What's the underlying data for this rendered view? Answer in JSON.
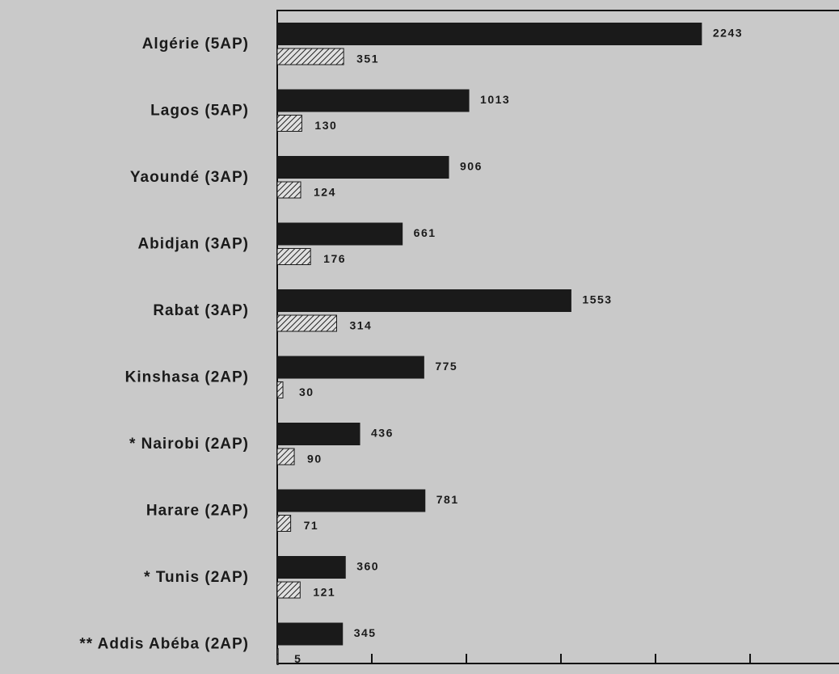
{
  "chart_data": {
    "type": "bar",
    "orientation": "horizontal",
    "categories": [
      "Algérie (5AP)",
      "Lagos (5AP)",
      "Yaoundé (3AP)",
      "Abidjan (3AP)",
      "Rabat (3AP)",
      "Kinshasa (2AP)",
      "* Nairobi (2AP)",
      "Harare (2AP)",
      "* Tunis (2AP)",
      "** Addis Abéba (2AP)"
    ],
    "series": [
      {
        "color": "#1a1a1a",
        "pattern": "solid",
        "values": [
          2243,
          1013,
          906,
          661,
          1553,
          775,
          436,
          781,
          360,
          345
        ]
      },
      {
        "color": "#1a1a1a",
        "pattern": "hatch",
        "values": [
          351,
          130,
          124,
          176,
          314,
          30,
          90,
          71,
          121,
          5
        ]
      }
    ],
    "xlim": [
      0,
      2970
    ],
    "xticks": [
      0,
      500,
      1000,
      1500,
      2000,
      2500
    ]
  }
}
